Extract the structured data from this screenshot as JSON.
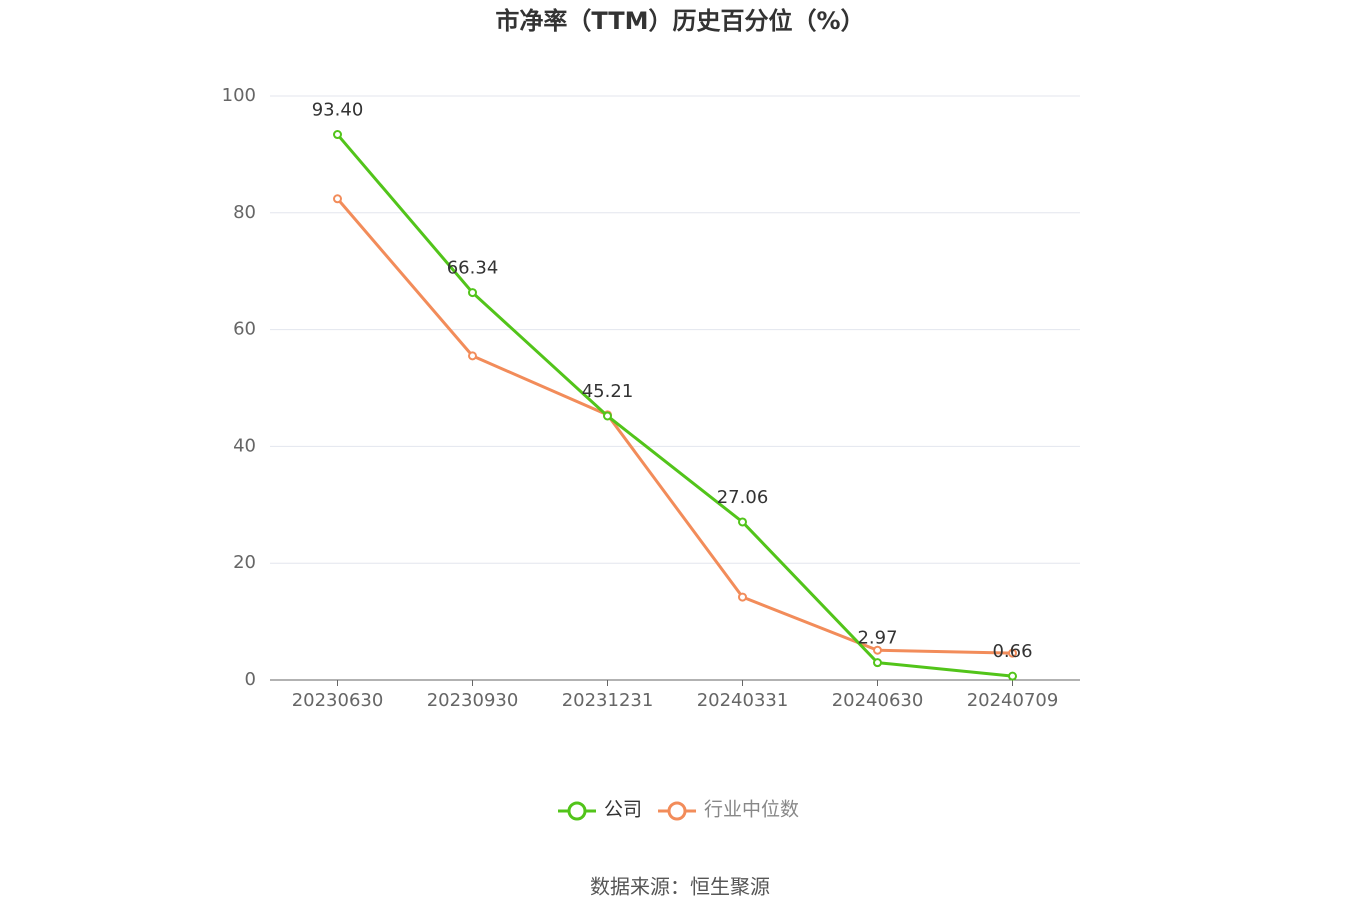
{
  "chart_data": {
    "type": "line",
    "title": "市净率（TTM）历史百分位（%）",
    "categories": [
      "20230630",
      "20230930",
      "20231231",
      "20240331",
      "20240630",
      "20240709"
    ],
    "series": [
      {
        "name": "公司",
        "color": "#52c41a",
        "values": [
          93.4,
          66.34,
          45.21,
          27.06,
          2.97,
          0.66
        ],
        "value_labels": [
          "93.40",
          "66.34",
          "45.21",
          "27.06",
          "2.97",
          "0.66"
        ]
      },
      {
        "name": "行业中位数",
        "color": "#f28c5a",
        "values": [
          82.4,
          55.5,
          45.4,
          14.2,
          5.1,
          4.6
        ]
      }
    ],
    "ylim": [
      0,
      100
    ],
    "yticks": [
      0,
      20,
      40,
      60,
      80,
      100
    ],
    "grid": true,
    "source": "数据来源：恒生聚源"
  }
}
